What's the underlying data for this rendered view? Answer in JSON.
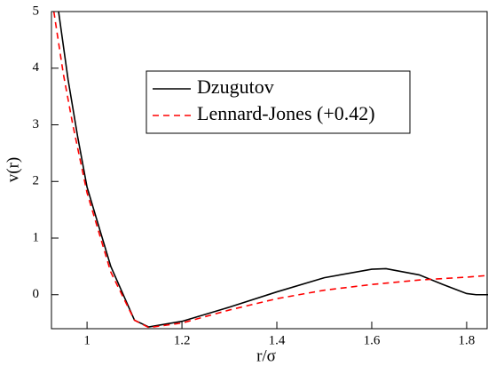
{
  "chart_data": {
    "type": "line",
    "x_label": "r/σ",
    "y_label": "v(r)",
    "xlim": [
      0.925,
      1.845
    ],
    "ylim": [
      -0.6,
      5
    ],
    "xticks": [
      1,
      1.2,
      1.4,
      1.6,
      1.8
    ],
    "yticks": [
      0,
      1,
      2,
      3,
      4,
      5
    ],
    "legend": "upper center",
    "series": [
      {
        "name": "Dzugutov",
        "color": "#000000",
        "dash": "solid",
        "x": [
          0.94,
          0.96,
          0.98,
          1.0,
          1.05,
          1.1,
          1.13,
          1.2,
          1.3,
          1.4,
          1.5,
          1.6,
          1.63,
          1.7,
          1.75,
          1.8,
          1.82,
          1.845
        ],
        "values": [
          5,
          3.8,
          2.8,
          1.9,
          0.5,
          -0.45,
          -0.57,
          -0.47,
          -0.22,
          0.05,
          0.3,
          0.45,
          0.46,
          0.35,
          0.18,
          0.02,
          0,
          0
        ]
      },
      {
        "name": "Lennard-Jones (+0.42)",
        "color": "#ff0000",
        "dash": "dashed",
        "x": [
          0.93,
          0.95,
          0.97,
          1.0,
          1.05,
          1.1,
          1.13,
          1.2,
          1.3,
          1.4,
          1.5,
          1.6,
          1.7,
          1.8,
          1.845
        ],
        "values": [
          5,
          3.9,
          3.0,
          1.8,
          0.4,
          -0.45,
          -0.58,
          -0.5,
          -0.27,
          -0.07,
          0.08,
          0.18,
          0.26,
          0.31,
          0.34
        ]
      }
    ]
  }
}
